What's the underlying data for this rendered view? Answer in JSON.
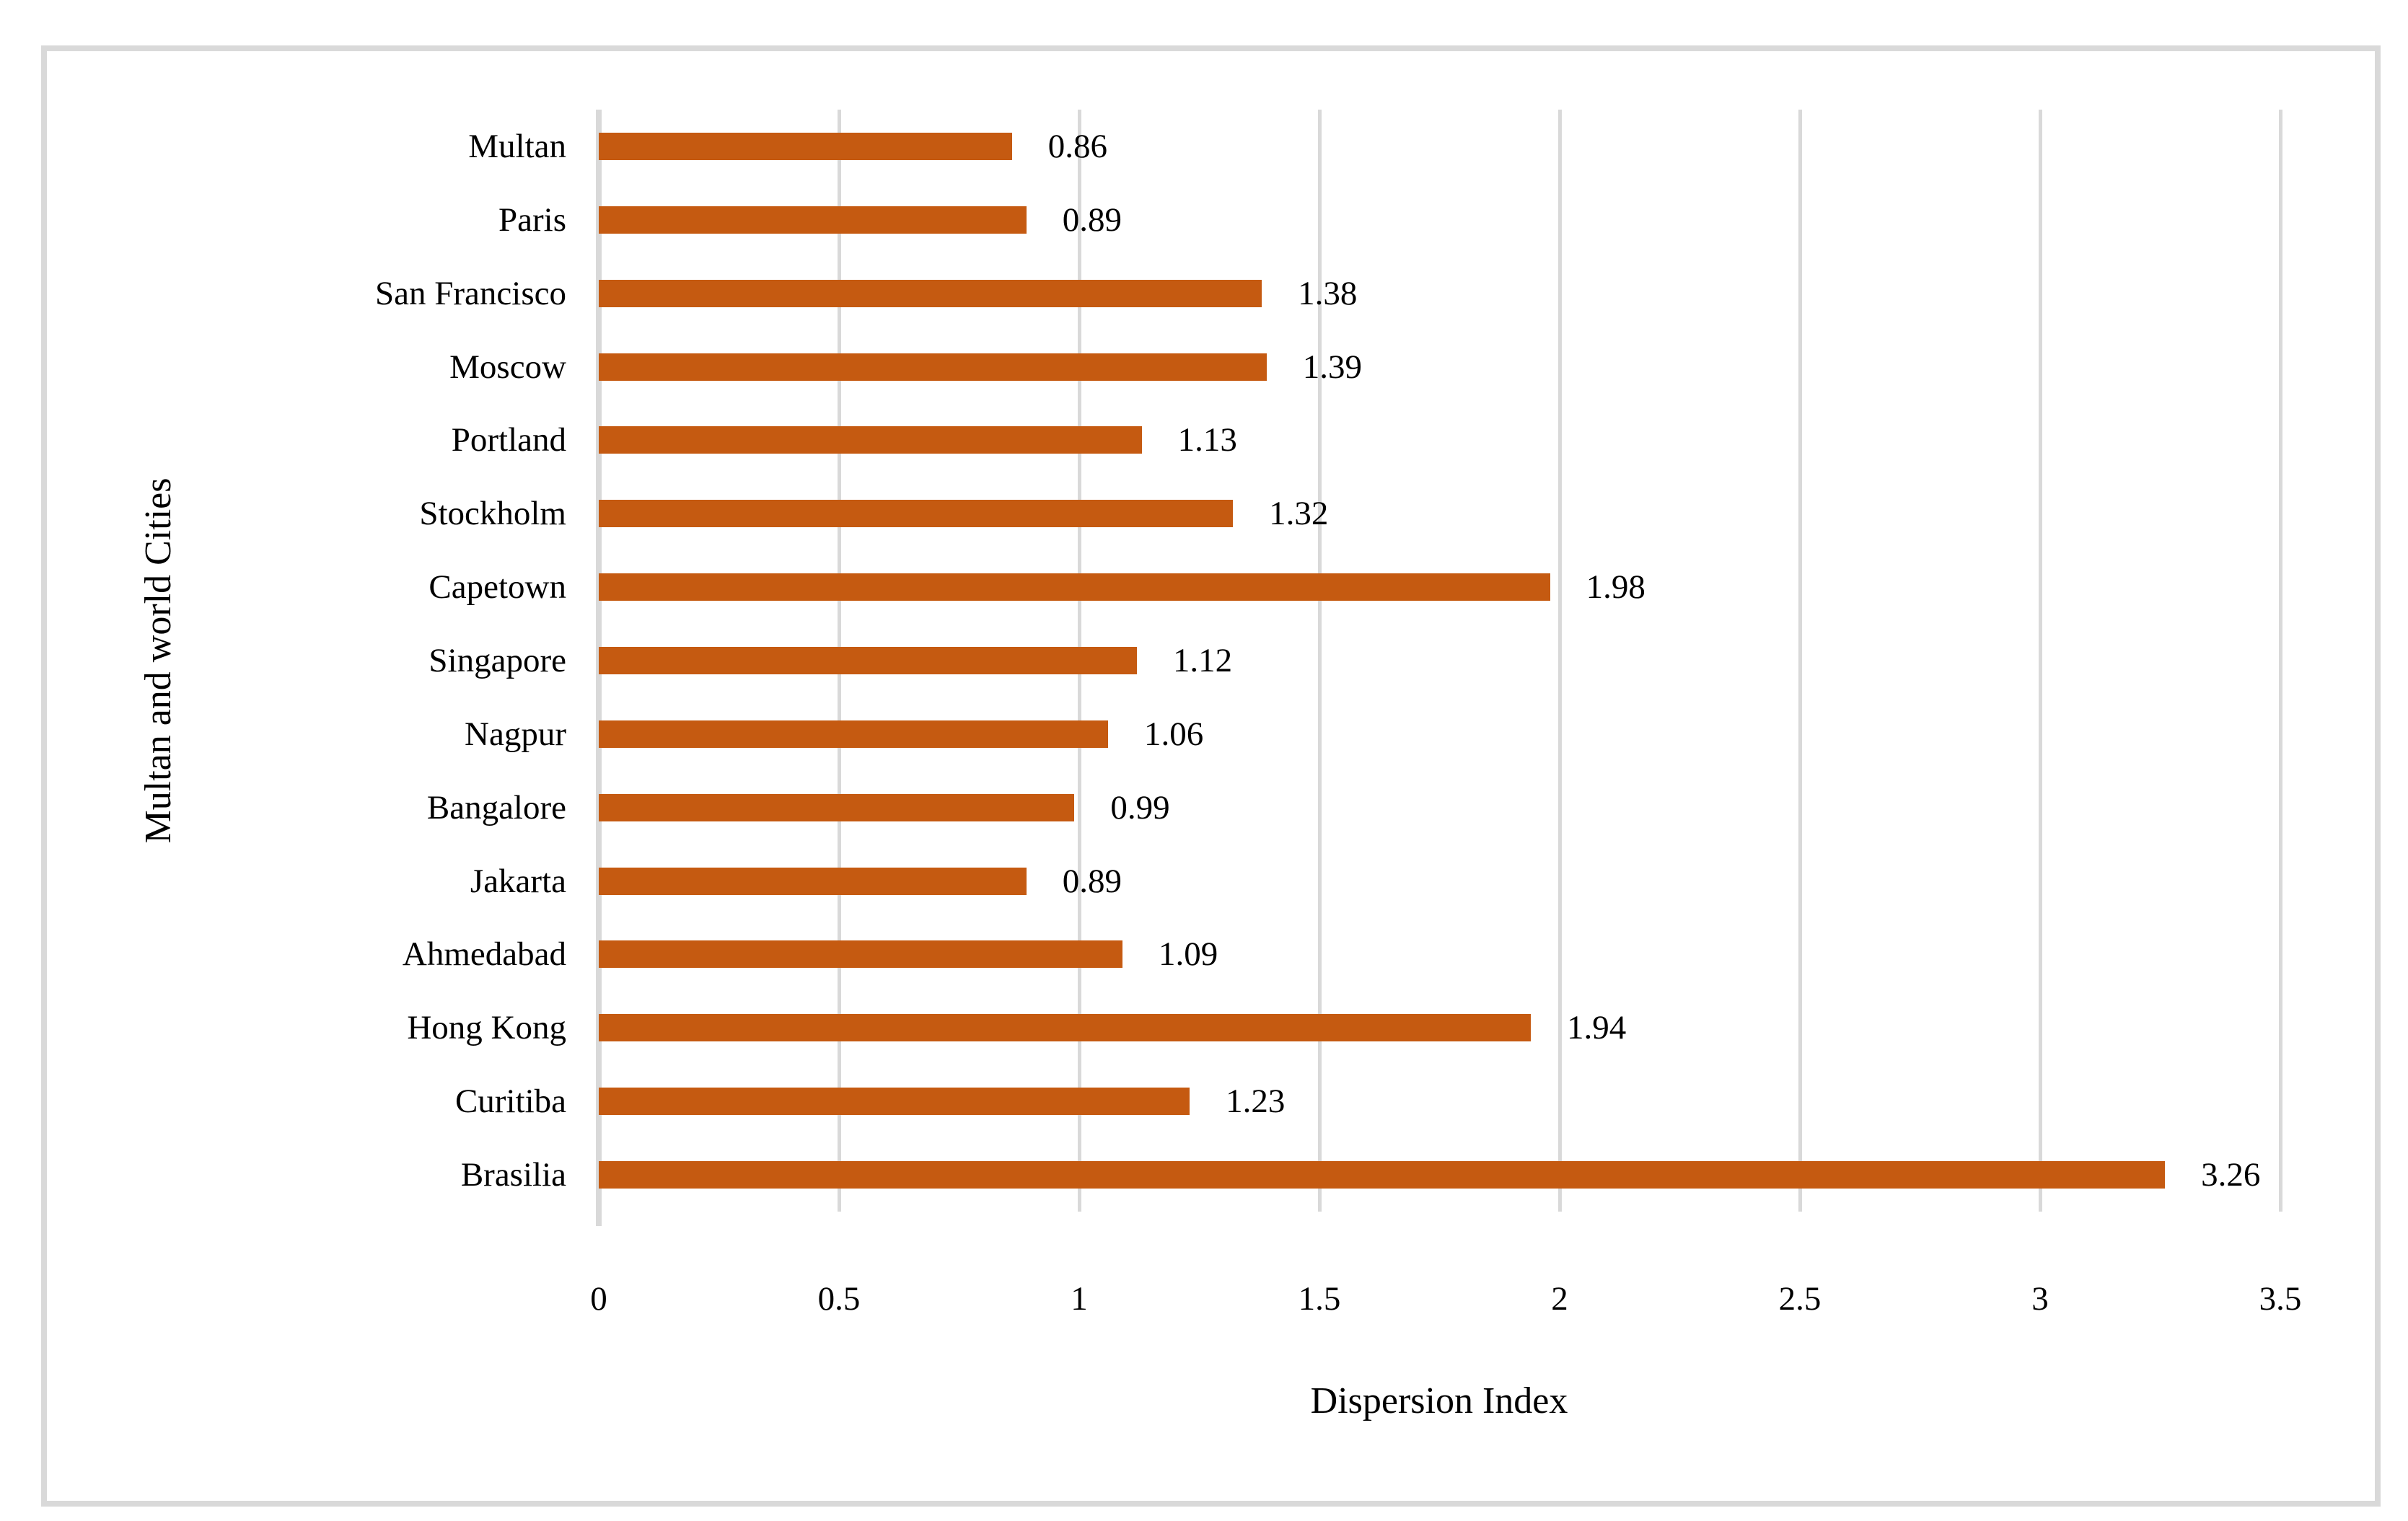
{
  "chart_data": {
    "type": "bar",
    "orientation": "horizontal",
    "title": "",
    "xlabel": "Dispersion Index",
    "ylabel": "Multan and world Cities",
    "categories": [
      "Multan",
      "Paris",
      "San Francisco",
      "Moscow",
      "Portland",
      "Stockholm",
      "Capetown",
      "Singapore",
      "Nagpur",
      "Bangalore",
      "Jakarta",
      "Ahmedabad",
      "Hong Kong",
      "Curitiba",
      "Brasilia"
    ],
    "values": [
      0.86,
      0.89,
      1.38,
      1.39,
      1.13,
      1.32,
      1.98,
      1.12,
      1.06,
      0.99,
      0.89,
      1.09,
      1.94,
      1.23,
      3.26
    ],
    "data_labels": [
      "0.86",
      "0.89",
      "1.38",
      "1.39",
      "1.13",
      "1.32",
      "1.98",
      "1.12",
      "1.06",
      "0.99",
      "0.89",
      "1.09",
      "1.94",
      "1.23",
      "3.26"
    ],
    "xlim": [
      0,
      3.5
    ],
    "xticks": [
      "0",
      "0.5",
      "1",
      "1.5",
      "2",
      "2.5",
      "3",
      "3.5"
    ],
    "xtick_values": [
      0,
      0.5,
      1,
      1.5,
      2,
      2.5,
      3,
      3.5
    ],
    "grid": true,
    "legend": false,
    "colors": {
      "bar": "#C55A11",
      "gridline": "#D9D9D9",
      "axis_line": "#D9D9D9",
      "border": "#D9D9D9",
      "text": "#000000",
      "background": "#FFFFFF"
    }
  }
}
